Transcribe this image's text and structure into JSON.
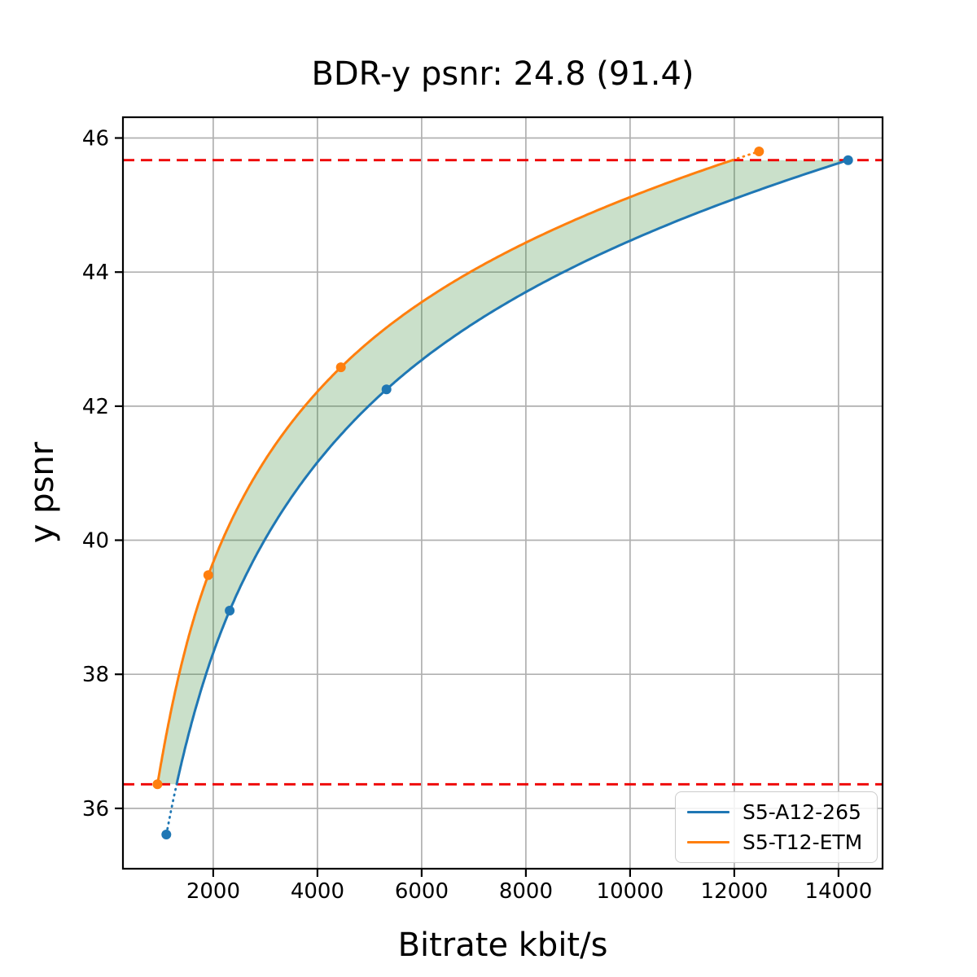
{
  "chart_data": {
    "type": "line",
    "title": "BDR-y psnr: 24.8 (91.4)",
    "xlabel": "Bitrate kbit/s",
    "ylabel": "y psnr",
    "xlim": [
      267,
      14846
    ],
    "ylim": [
      35.1,
      46.31
    ],
    "x_ticks": [
      2000,
      4000,
      6000,
      8000,
      10000,
      12000,
      14000
    ],
    "y_ticks": [
      36,
      38,
      40,
      42,
      44,
      46
    ],
    "grid": true,
    "grid_color": "#b0b0b0",
    "background": "#ffffff",
    "legend_position": "lower right",
    "series": [
      {
        "name": "S5-A12-265",
        "color": "#1f77b4",
        "x": [
          1100,
          2315,
          5325,
          14185
        ],
        "y": [
          35.61,
          38.95,
          42.25,
          45.67
        ]
      },
      {
        "name": "S5-T12-ETM",
        "color": "#ff7f0e",
        "x": [
          930,
          1905,
          4450,
          12475
        ],
        "y": [
          36.36,
          39.48,
          42.58,
          45.8
        ]
      }
    ],
    "overlap_band": {
      "low": 36.36,
      "high": 45.67,
      "line_color": "#ee0000",
      "line_style": "dashed"
    },
    "fill_between_color": "rgba(44,130,44,0.25)",
    "interpolation": "pchip-log-x"
  }
}
